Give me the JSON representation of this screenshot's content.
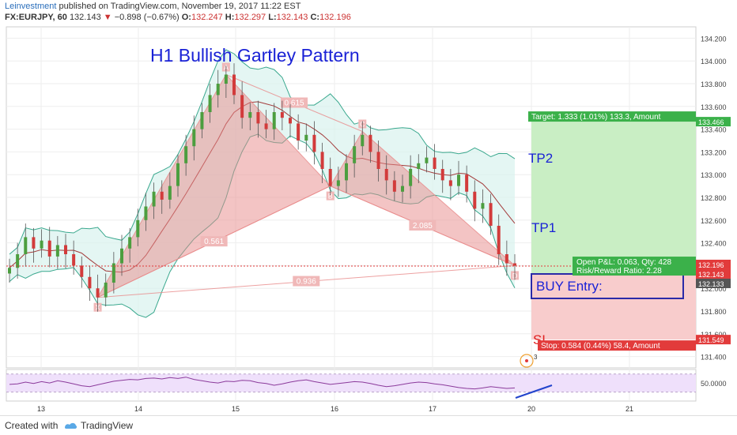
{
  "header": {
    "brand": "Leinvestment",
    "published": " published on TradingView.com, November 19, 2017 11:22 EST",
    "symbol": "FX:EURJPY, 60",
    "last": "132.143",
    "change": "−0.898 (−0.67%)",
    "o_label": "O:",
    "o_value": "132.247",
    "h_label": "H:",
    "h_value": "132.297",
    "l_label": "L:",
    "l_value": "132.143",
    "c_label": "C:",
    "c_value": "132.196"
  },
  "footer": {
    "created_with": "Created with",
    "brand": "TradingView"
  },
  "colors": {
    "pattern_fill": "#e88a8a",
    "bollinger": "#3aa88e",
    "bollinger_fill": "#d9f2ee",
    "mid_band": "#a33b3b",
    "bull": "#4c9e3f",
    "bear": "#d23b3b",
    "target_zone": "#c9eec4",
    "stop_zone": "#f8cccc",
    "title": "#1a22d6",
    "rsi": "#8b3a9b",
    "rsi_band": "#efe0fb"
  },
  "chart_data": {
    "type": "candlestick",
    "title": "H1 Bullish Gartley Pattern",
    "ylim": [
      131.3,
      134.3
    ],
    "y_ticks": [
      "134.200",
      "134.000",
      "133.800",
      "133.600",
      "133.400",
      "133.200",
      "133.000",
      "132.800",
      "132.600",
      "132.400",
      "132.200",
      "132.000",
      "131.800",
      "131.600",
      "131.400"
    ],
    "x_ticks": [
      "13",
      "14",
      "15",
      "16",
      "17",
      "20",
      "21"
    ],
    "close_series": [
      132.18,
      132.3,
      132.45,
      132.35,
      132.42,
      132.28,
      132.38,
      132.3,
      132.2,
      132.1,
      132.0,
      131.92,
      132.05,
      132.22,
      132.35,
      132.45,
      132.6,
      132.72,
      132.85,
      132.78,
      132.9,
      133.1,
      133.25,
      133.4,
      133.55,
      133.7,
      133.8,
      133.88,
      133.7,
      133.5,
      133.55,
      133.45,
      133.4,
      133.55,
      133.5,
      133.45,
      133.3,
      133.35,
      133.2,
      133.05,
      132.9,
      132.95,
      133.1,
      133.25,
      133.35,
      133.2,
      133.05,
      132.95,
      132.85,
      132.9,
      133.05,
      133.1,
      133.15,
      133.05,
      132.95,
      132.9,
      133.0,
      132.85,
      132.7,
      132.75,
      132.55,
      132.3,
      132.22,
      132.2
    ],
    "pattern_points": [
      {
        "label": "X",
        "price": 131.92
      },
      {
        "label": "A",
        "price": 133.88
      },
      {
        "label": "B",
        "price": 132.9
      },
      {
        "label": "C",
        "price": 133.38
      },
      {
        "label": "D",
        "price": 132.2
      }
    ],
    "ratios": [
      "0.615",
      "0.561",
      "2.085",
      "0.936"
    ],
    "annotations": {
      "tp2": "TP2",
      "tp1": "TP1",
      "sl": "SL",
      "buy_entry": "BUY Entry:",
      "target": "Target: 1.333 (1.01%) 133.3, Amount",
      "stop": "Stop: 0.584 (0.44%) 58.4, Amount",
      "open_pnl": "Open P&L: 0.063, Qty: 428",
      "risk_reward": "Risk/Reward Ratio: 2.28",
      "alert_count": "3"
    },
    "price_labels": [
      {
        "value": "133.466",
        "bg": "#3bb14a"
      },
      {
        "value": "132.196",
        "bg": "#e23b3b"
      },
      {
        "value": "132.143",
        "bg": "#e23b3b"
      },
      {
        "value": "132.133",
        "bg": "#555555"
      },
      {
        "value": "131.549",
        "bg": "#e23b3b"
      }
    ],
    "target_price": 133.466,
    "entry_price": 132.133,
    "stop_price": 131.549,
    "rsi": {
      "tick": "50.0000",
      "values": [
        47,
        48,
        52,
        49,
        53,
        50,
        55,
        52,
        48,
        44,
        42,
        46,
        50,
        54,
        56,
        58,
        57,
        60,
        61,
        59,
        62,
        60,
        63,
        58,
        55,
        52,
        50,
        54,
        53,
        56,
        55,
        51,
        49,
        45,
        48,
        52,
        55,
        57,
        53,
        50,
        47,
        49,
        51,
        53,
        52,
        49,
        45,
        42,
        44,
        47,
        50,
        52,
        51,
        48,
        46,
        43,
        40,
        38,
        37,
        39,
        42,
        40,
        38,
        39
      ]
    }
  }
}
